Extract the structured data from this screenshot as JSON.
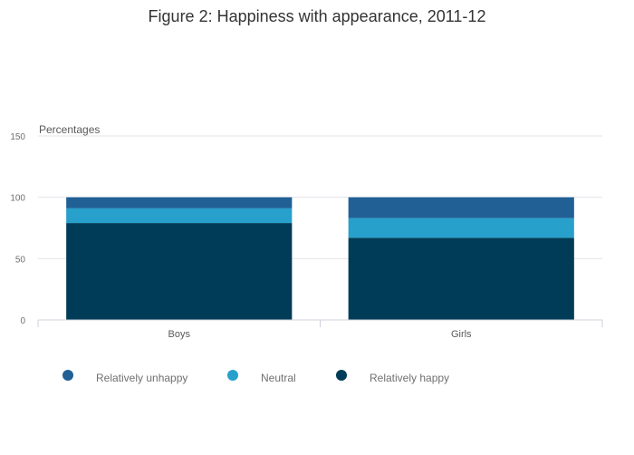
{
  "chart_data": {
    "type": "bar",
    "stacked": true,
    "title": "Figure 2: Happiness with appearance, 2011-12",
    "ylabel": "Percentages",
    "xlabel": "",
    "categories": [
      "Boys",
      "Girls"
    ],
    "ylim": [
      0,
      150
    ],
    "yticks": [
      "0",
      "50",
      "100",
      "150"
    ],
    "grid": true,
    "legend_position": "bottom",
    "series": [
      {
        "name": "Relatively happy",
        "values": [
          79,
          67
        ],
        "color": "#003c57"
      },
      {
        "name": "Neutral",
        "values": [
          12,
          16
        ],
        "color": "#27a0cc"
      },
      {
        "name": "Relatively unhappy",
        "values": [
          9,
          17
        ],
        "color": "#206095"
      }
    ],
    "legend_order": [
      "Relatively unhappy",
      "Neutral",
      "Relatively happy"
    ]
  }
}
